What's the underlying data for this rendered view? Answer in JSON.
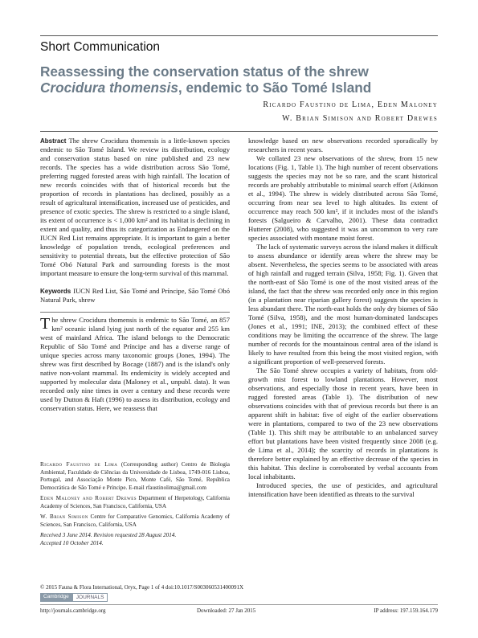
{
  "header": {
    "section": "Short Communication",
    "title_line1": "Reassessing the conservation status of the shrew",
    "title_italic": "Crocidura thomensis",
    "title_rest": ", endemic to São Tomé Island",
    "authors_line1": "Ricardo Faustino de Lima, Eden Maloney",
    "authors_line2": "W. Brian Simison and Robert Drewes"
  },
  "abstract": {
    "label": "Abstract",
    "text": "The shrew Crocidura thomensis is a little-known species endemic to São Tomé Island. We review its distribution, ecology and conservation status based on nine published and 23 new records. The species has a wide distribution across São Tomé, preferring rugged forested areas with high rainfall. The location of new records coincides with that of historical records but the proportion of records in plantations has declined, possibly as a result of agricultural intensification, increased use of pesticides, and presence of exotic species. The shrew is restricted to a single island, its extent of occurrence is < 1,000 km² and its habitat is declining in extent and quality, and thus its categorization as Endangered on the IUCN Red List remains appropriate. It is important to gain a better knowledge of population trends, ecological preferences and sensitivity to potential threats, but the effective protection of São Tomé Obó Natural Park and surrounding forests is the most important measure to ensure the long-term survival of this mammal."
  },
  "keywords": {
    "label": "Keywords",
    "text": "IUCN Red List, São Tomé and Príncipe, São Tomé Obó Natural Park, shrew"
  },
  "intro": {
    "drop": "T",
    "text": "he shrew Crocidura thomensis is endemic to São Tomé, an 857 km² oceanic island lying just north of the equator and 255 km west of mainland Africa. The island belongs to the Democratic Republic of São Tomé and Príncipe and has a diverse range of unique species across many taxonomic groups (Jones, 1994). The shrew was first described by Bocage (1887) and is the island's only native non-volant mammal. Its endemicity is widely accepted and supported by molecular data (Maloney et al., unpubl. data). It was recorded only nine times in over a century and these records were used by Dutton & Haft (1996) to assess its distribution, ecology and conservation status. Here, we reassess that"
  },
  "footnotes": [
    {
      "name": "Ricardo Faustino de Lima",
      "text": " (Corresponding author) Centro de Biologia Ambiental, Faculdade de Ciências da Universidade de Lisboa, 1749-016 Lisboa, Portugal, and Associação Monte Pico, Monte Café, São Tomé, República Democrática de São Tomé e Príncipe. E-mail rfaustinolima@gmail.com"
    },
    {
      "name": "Eden Maloney and Robert Drewes",
      "text": " Department of Herpetology, California Academy of Sciences, San Francisco, California, USA"
    },
    {
      "name": "W. Brian Simison",
      "text": " Centre for Comparative Genomics, California Academy of Sciences, San Francisco, California, USA"
    }
  ],
  "dates": {
    "received": "Received 3 June 2014. Revision requested 28 August 2014.",
    "accepted": "Accepted 10 October 2014."
  },
  "right_column": [
    "knowledge based on new observations recorded sporadically by researchers in recent years.",
    "We collated 23 new observations of the shrew, from 15 new locations (Fig. 1, Table 1). The high number of recent observations suggests the species may not be so rare, and the scant historical records are probably attributable to minimal search effort (Atkinson et al., 1994). The shrew is widely distributed across São Tomé, occurring from near sea level to high altitudes. Its extent of occurrence may reach 500 km², if it includes most of the island's forests (Salgueiro & Carvalho, 2001). These data contradict Hutterer (2008), who suggested it was an uncommon to very rare species associated with montane moist forest.",
    "The lack of systematic surveys across the island makes it difficult to assess abundance or identify areas where the shrew may be absent. Nevertheless, the species seems to be associated with areas of high rainfall and rugged terrain (Silva, 1958; Fig. 1). Given that the north-east of São Tomé is one of the most visited areas of the island, the fact that the shrew was recorded only once in this region (in a plantation near riparian gallery forest) suggests the species is less abundant there. The north-east holds the only dry biomes of São Tomé (Silva, 1958), and the most human-dominated landscapes (Jones et al., 1991; INE, 2013); the combined effect of these conditions may be limiting the occurrence of the shrew. The large number of records for the mountainous central area of the island is likely to have resulted from this being the most visited region, with a significant proportion of well-preserved forests.",
    "The São Tomé shrew occupies a variety of habitats, from old-growth mist forest to lowland plantations. However, most observations, and especially those in recent years, have been in rugged forested areas (Table 1). The distribution of new observations coincides with that of previous records but there is an apparent shift in habitat: five of eight of the earlier observations were in plantations, compared to two of the 23 new observations (Table 1). This shift may be attributable to an unbalanced survey effort but plantations have been visited frequently since 2008 (e.g. de Lima et al., 2014); the scarcity of records in plantations is therefore better explained by an effective decrease of the species in this habitat. This decline is corroborated by verbal accounts from local inhabitants.",
    "Introduced species, the use of pesticides, and agricultural intensification have been identified as threats to the survival"
  ],
  "footer": {
    "copyright": "© 2015 Fauna & Flora International, Oryx, Page 1 of 4   doi:10.1017/S003060531400091X",
    "logo_left": "Cambridge",
    "logo_right": "JOURNALS",
    "url": "http://journals.cambridge.org",
    "downloaded": "Downloaded: 27 Jan 2015",
    "ip": "IP address: 197.159.164.179"
  }
}
